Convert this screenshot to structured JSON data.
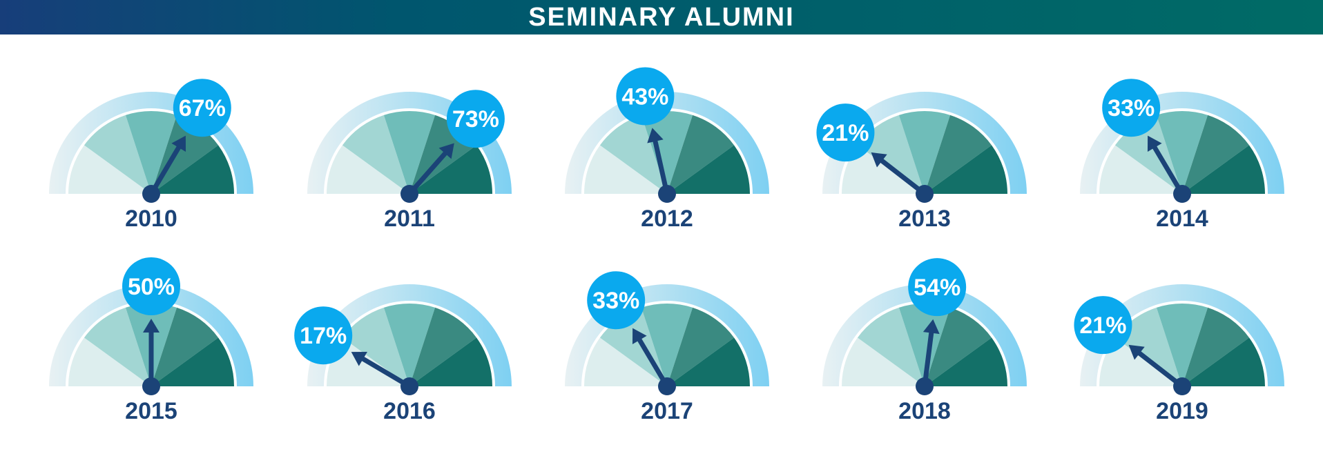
{
  "header": {
    "title": "SEMINARY ALUMNI"
  },
  "colors": {
    "banner_start": "#173E7A",
    "banner_mid": "#00566E",
    "banner_end": "#006B66",
    "outer_arc": "#7ED0F2",
    "outer_arc_fade": "#E8F1F3",
    "seg1": "#DDEEEE",
    "seg2": "#A2D6D3",
    "seg3": "#6FBDB9",
    "seg4": "#3A8A81",
    "seg5": "#137068",
    "needle": "#1B4377",
    "bubble": "#0AA9EE",
    "bubble_text": "#ffffff",
    "year_text": "#1B4377"
  },
  "chart_data": {
    "type": "gauge",
    "title": "SEMINARY ALUMNI",
    "unit": "%",
    "range": [
      0,
      100
    ],
    "gauges": [
      {
        "year": "2010",
        "value": 67,
        "label": "67%"
      },
      {
        "year": "2011",
        "value": 73,
        "label": "73%"
      },
      {
        "year": "2012",
        "value": 43,
        "label": "43%"
      },
      {
        "year": "2013",
        "value": 21,
        "label": "21%"
      },
      {
        "year": "2014",
        "value": 33,
        "label": "33%"
      },
      {
        "year": "2015",
        "value": 50,
        "label": "50%"
      },
      {
        "year": "2016",
        "value": 17,
        "label": "17%"
      },
      {
        "year": "2017",
        "value": 33,
        "label": "33%"
      },
      {
        "year": "2018",
        "value": 54,
        "label": "54%"
      },
      {
        "year": "2019",
        "value": 21,
        "label": "21%"
      }
    ]
  }
}
